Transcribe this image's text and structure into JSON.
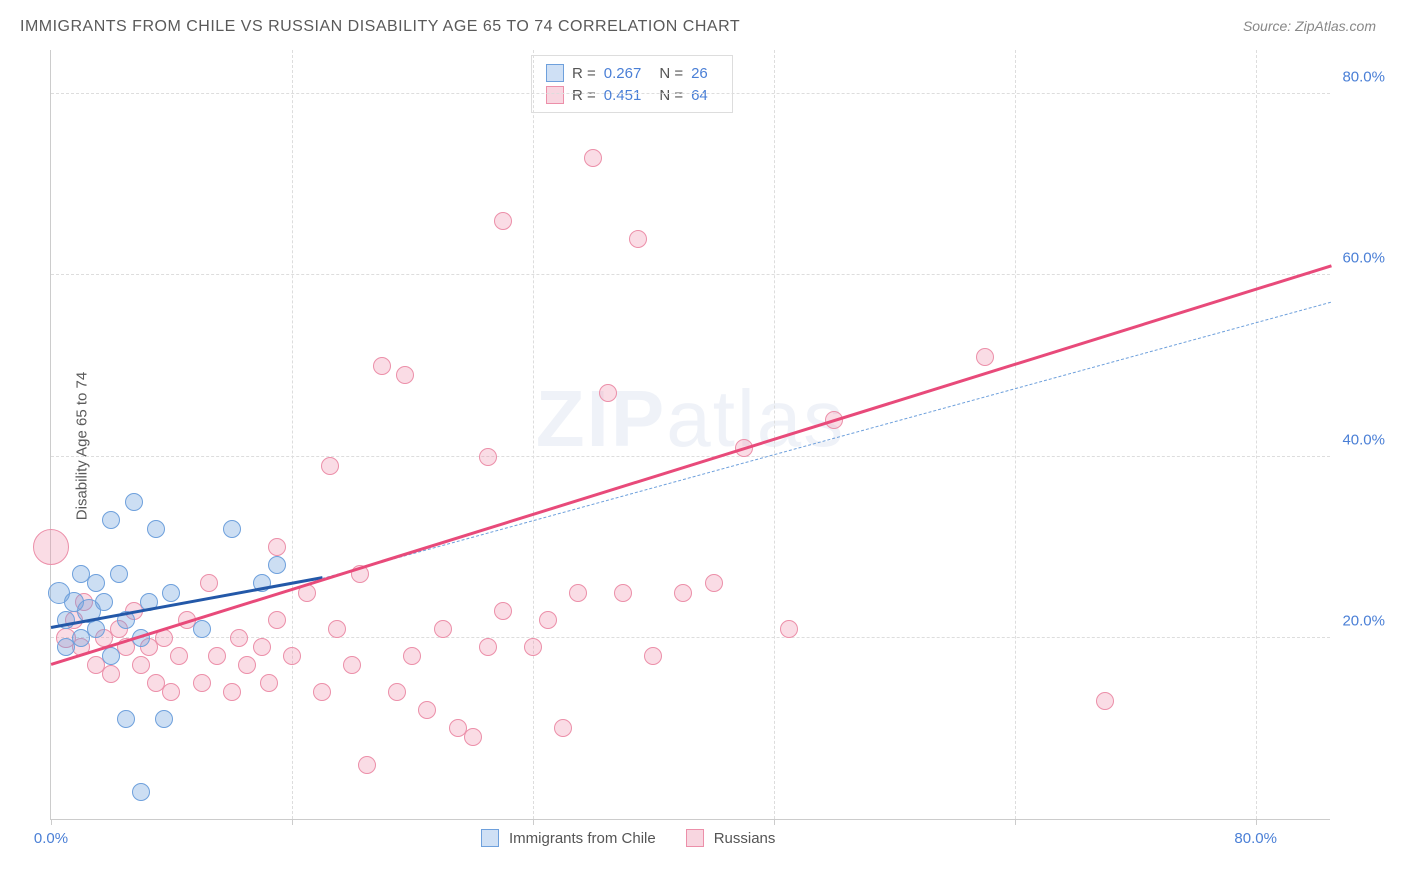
{
  "title": "IMMIGRANTS FROM CHILE VS RUSSIAN DISABILITY AGE 65 TO 74 CORRELATION CHART",
  "source_label": "Source: ZipAtlas.com",
  "y_axis_label": "Disability Age 65 to 74",
  "watermark_bold": "ZIP",
  "watermark_light": "atlas",
  "chart": {
    "type": "scatter",
    "xlim": [
      0,
      85
    ],
    "ylim": [
      0,
      85
    ],
    "x_ticks": [
      0,
      16,
      32,
      48,
      64,
      80
    ],
    "x_tick_labels": {
      "0": "0.0%",
      "80": "80.0%"
    },
    "y_ticks": [
      20,
      40,
      60,
      80
    ],
    "y_tick_labels": {
      "20": "20.0%",
      "40": "40.0%",
      "60": "60.0%",
      "80": "80.0%"
    },
    "background_color": "#ffffff",
    "grid_color": "#dddddd",
    "axis_color": "#cccccc",
    "tick_label_color": "#4a7fd6",
    "series": [
      {
        "name": "Immigrants from Chile",
        "legend_label": "Immigrants from Chile",
        "fill_color": "rgba(110,160,220,0.35)",
        "stroke_color": "#6ea0dc",
        "swatch_fill": "#cfe0f5",
        "swatch_border": "#6ea0dc",
        "marker_radius": 9,
        "R": "0.267",
        "N": "26",
        "trend": {
          "x1": 0,
          "y1": 21,
          "x2": 18,
          "y2": 26.5,
          "color": "#2358a8",
          "width": 3
        },
        "trend_dashed": {
          "x1": 18,
          "y1": 26.5,
          "x2": 85,
          "y2": 57,
          "color": "#6ea0dc"
        },
        "points": [
          {
            "x": 0.5,
            "y": 25,
            "r": 11
          },
          {
            "x": 1,
            "y": 22,
            "r": 9
          },
          {
            "x": 1.5,
            "y": 24,
            "r": 10
          },
          {
            "x": 2,
            "y": 27,
            "r": 9
          },
          {
            "x": 2,
            "y": 20,
            "r": 9
          },
          {
            "x": 2.5,
            "y": 23,
            "r": 12
          },
          {
            "x": 3,
            "y": 21,
            "r": 9
          },
          {
            "x": 3,
            "y": 26,
            "r": 9
          },
          {
            "x": 3.5,
            "y": 24,
            "r": 9
          },
          {
            "x": 4,
            "y": 33,
            "r": 9
          },
          {
            "x": 4.5,
            "y": 27,
            "r": 9
          },
          {
            "x": 5,
            "y": 22,
            "r": 9
          },
          {
            "x": 5,
            "y": 11,
            "r": 9
          },
          {
            "x": 5.5,
            "y": 35,
            "r": 9
          },
          {
            "x": 6,
            "y": 20,
            "r": 9
          },
          {
            "x": 6,
            "y": 3,
            "r": 9
          },
          {
            "x": 6.5,
            "y": 24,
            "r": 9
          },
          {
            "x": 7,
            "y": 32,
            "r": 9
          },
          {
            "x": 7.5,
            "y": 11,
            "r": 9
          },
          {
            "x": 8,
            "y": 25,
            "r": 9
          },
          {
            "x": 10,
            "y": 21,
            "r": 9
          },
          {
            "x": 12,
            "y": 32,
            "r": 9
          },
          {
            "x": 14,
            "y": 26,
            "r": 9
          },
          {
            "x": 15,
            "y": 28,
            "r": 9
          },
          {
            "x": 4,
            "y": 18,
            "r": 9
          },
          {
            "x": 1,
            "y": 19,
            "r": 9
          }
        ]
      },
      {
        "name": "Russians",
        "legend_label": "Russians",
        "fill_color": "rgba(240,140,170,0.3)",
        "stroke_color": "#ec8fa9",
        "swatch_fill": "#f8d6e0",
        "swatch_border": "#ec8fa9",
        "marker_radius": 9,
        "R": "0.451",
        "N": "64",
        "trend": {
          "x1": 0,
          "y1": 17,
          "x2": 85,
          "y2": 61,
          "color": "#e84a7a",
          "width": 2.5
        },
        "points": [
          {
            "x": 0,
            "y": 30,
            "r": 18
          },
          {
            "x": 1,
            "y": 20,
            "r": 10
          },
          {
            "x": 1.5,
            "y": 22,
            "r": 9
          },
          {
            "x": 2,
            "y": 19,
            "r": 9
          },
          {
            "x": 2.2,
            "y": 24,
            "r": 9
          },
          {
            "x": 3,
            "y": 17,
            "r": 9
          },
          {
            "x": 3.5,
            "y": 20,
            "r": 9
          },
          {
            "x": 4,
            "y": 16,
            "r": 9
          },
          {
            "x": 4.5,
            "y": 21,
            "r": 9
          },
          {
            "x": 5,
            "y": 19,
            "r": 9
          },
          {
            "x": 5.5,
            "y": 23,
            "r": 9
          },
          {
            "x": 6,
            "y": 17,
            "r": 9
          },
          {
            "x": 6.5,
            "y": 19,
            "r": 9
          },
          {
            "x": 7,
            "y": 15,
            "r": 9
          },
          {
            "x": 7.5,
            "y": 20,
            "r": 9
          },
          {
            "x": 8,
            "y": 14,
            "r": 9
          },
          {
            "x": 8.5,
            "y": 18,
            "r": 9
          },
          {
            "x": 9,
            "y": 22,
            "r": 9
          },
          {
            "x": 10,
            "y": 15,
            "r": 9
          },
          {
            "x": 10.5,
            "y": 26,
            "r": 9
          },
          {
            "x": 11,
            "y": 18,
            "r": 9
          },
          {
            "x": 12,
            "y": 14,
            "r": 9
          },
          {
            "x": 12.5,
            "y": 20,
            "r": 9
          },
          {
            "x": 13,
            "y": 17,
            "r": 9
          },
          {
            "x": 14,
            "y": 19,
            "r": 9
          },
          {
            "x": 14.5,
            "y": 15,
            "r": 9
          },
          {
            "x": 15,
            "y": 22,
            "r": 9
          },
          {
            "x": 16,
            "y": 18,
            "r": 9
          },
          {
            "x": 17,
            "y": 25,
            "r": 9
          },
          {
            "x": 18,
            "y": 14,
            "r": 9
          },
          {
            "x": 18.5,
            "y": 39,
            "r": 9
          },
          {
            "x": 19,
            "y": 21,
            "r": 9
          },
          {
            "x": 20,
            "y": 17,
            "r": 9
          },
          {
            "x": 20.5,
            "y": 27,
            "r": 9
          },
          {
            "x": 21,
            "y": 6,
            "r": 9
          },
          {
            "x": 22,
            "y": 50,
            "r": 9
          },
          {
            "x": 23,
            "y": 14,
            "r": 9
          },
          {
            "x": 23.5,
            "y": 49,
            "r": 9
          },
          {
            "x": 24,
            "y": 18,
            "r": 9
          },
          {
            "x": 25,
            "y": 12,
            "r": 9
          },
          {
            "x": 26,
            "y": 21,
            "r": 9
          },
          {
            "x": 27,
            "y": 10,
            "r": 9
          },
          {
            "x": 28,
            "y": 9,
            "r": 9
          },
          {
            "x": 29,
            "y": 40,
            "r": 9
          },
          {
            "x": 30,
            "y": 23,
            "r": 9
          },
          {
            "x": 30,
            "y": 66,
            "r": 9
          },
          {
            "x": 32,
            "y": 19,
            "r": 9
          },
          {
            "x": 33,
            "y": 22,
            "r": 9
          },
          {
            "x": 34,
            "y": 10,
            "r": 9
          },
          {
            "x": 35,
            "y": 25,
            "r": 9
          },
          {
            "x": 36,
            "y": 73,
            "r": 9
          },
          {
            "x": 37,
            "y": 47,
            "r": 9
          },
          {
            "x": 38,
            "y": 25,
            "r": 9
          },
          {
            "x": 39,
            "y": 64,
            "r": 9
          },
          {
            "x": 40,
            "y": 18,
            "r": 9
          },
          {
            "x": 42,
            "y": 25,
            "r": 9
          },
          {
            "x": 44,
            "y": 26,
            "r": 9
          },
          {
            "x": 46,
            "y": 41,
            "r": 9
          },
          {
            "x": 49,
            "y": 21,
            "r": 9
          },
          {
            "x": 52,
            "y": 44,
            "r": 9
          },
          {
            "x": 62,
            "y": 51,
            "r": 9
          },
          {
            "x": 70,
            "y": 13,
            "r": 9
          },
          {
            "x": 15,
            "y": 30,
            "r": 9
          },
          {
            "x": 29,
            "y": 19,
            "r": 9
          }
        ]
      }
    ],
    "legend_top": {
      "R_label": "R =",
      "N_label": "N ="
    }
  }
}
